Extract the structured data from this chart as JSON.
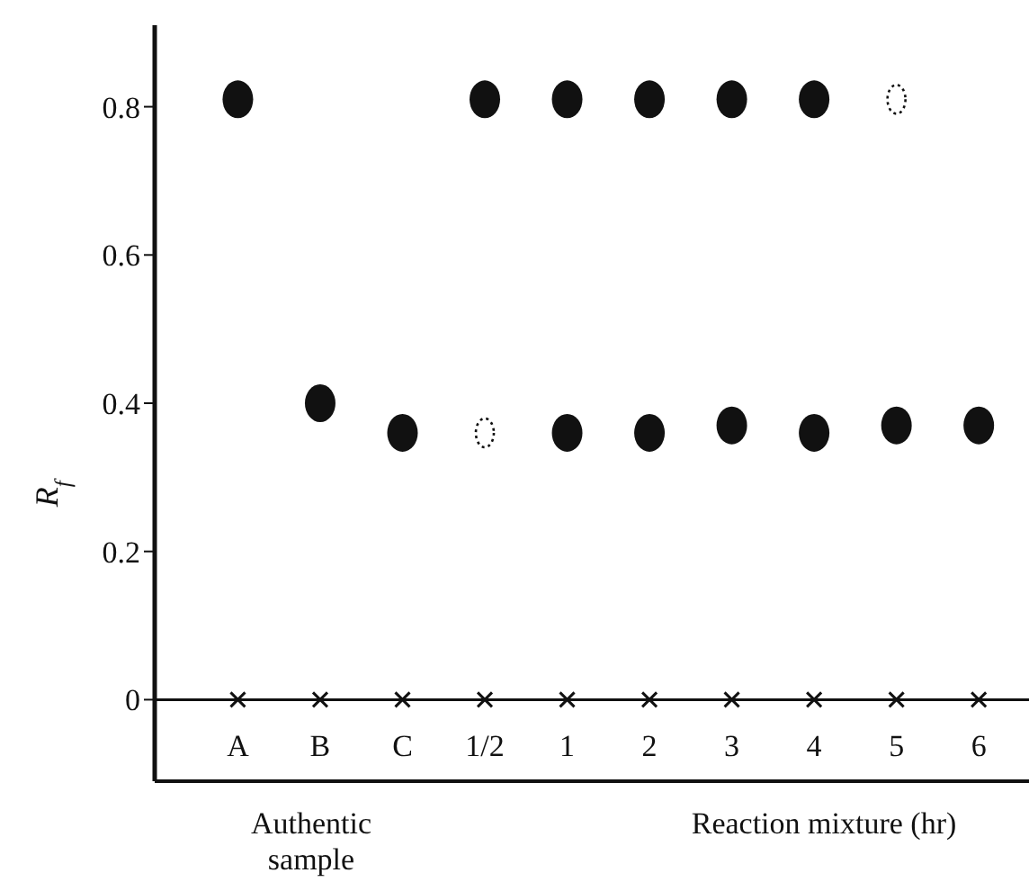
{
  "chart_data": {
    "type": "scatter",
    "ylabel": "R$_{f}$",
    "categories": [
      "A",
      "B",
      "C",
      "1/2",
      "1",
      "2",
      "3",
      "4",
      "5",
      "6"
    ],
    "series": [
      {
        "color": "#111111",
        "marker": "circle",
        "values": [
          0.81,
          null,
          null,
          0.81,
          0.81,
          0.81,
          0.81,
          0.81,
          null,
          null
        ]
      },
      {
        "color": "#111111",
        "marker": "circle",
        "values": [
          null,
          0.4,
          0.36,
          null,
          0.36,
          0.36,
          0.37,
          0.36,
          0.37,
          0.37
        ]
      },
      {
        "color": "#111111",
        "marker": "circle",
        "line_style": "dotted",
        "values": [
          null,
          null,
          null,
          0.36,
          null,
          null,
          null,
          null,
          0.81,
          null
        ]
      },
      {
        "color": "#111111",
        "marker": "cross",
        "values": [
          0,
          0,
          0,
          0,
          0,
          0,
          0,
          0,
          0,
          0
        ]
      }
    ],
    "ylim": [
      -0.11,
      0.91
    ],
    "yticks": [
      0,
      0.2,
      0.4,
      0.6,
      0.8
    ],
    "ref_lines": [
      {
        "axis": "y",
        "value": 0,
        "color": "#111111"
      }
    ],
    "grid": false,
    "legend": false,
    "annotations": [
      "Authentic sample",
      "Reaction mixture (hr)"
    ]
  }
}
